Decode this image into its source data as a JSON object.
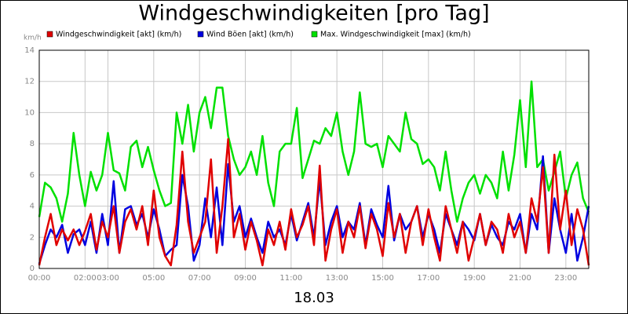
{
  "chart_data": {
    "type": "line",
    "title": "Windgeschwindigkeiten [pro Tag]",
    "y_label": "km/h",
    "x_label": "18.03",
    "xlim": [
      0,
      24
    ],
    "ylim": [
      0,
      14
    ],
    "yticks": [
      0,
      2,
      4,
      6,
      8,
      10,
      12,
      14
    ],
    "xticks": [
      {
        "value": 0,
        "label": "00:00"
      },
      {
        "value": 2,
        "label": "02:00"
      },
      {
        "value": 3,
        "label": "03:00"
      },
      {
        "value": 5,
        "label": "05:00"
      },
      {
        "value": 7,
        "label": "07:00"
      },
      {
        "value": 9,
        "label": "09:00"
      },
      {
        "value": 11,
        "label": "11:00"
      },
      {
        "value": 13,
        "label": "13:00"
      },
      {
        "value": 15,
        "label": "15:00"
      },
      {
        "value": 17,
        "label": "17:00"
      },
      {
        "value": 19,
        "label": "19:00"
      },
      {
        "value": 21,
        "label": "21:00"
      },
      {
        "value": 23,
        "label": "23:00"
      }
    ],
    "grid": true,
    "x": [
      0,
      0.25,
      0.5,
      0.75,
      1,
      1.25,
      1.5,
      1.75,
      2,
      2.25,
      2.5,
      2.75,
      3,
      3.25,
      3.5,
      3.75,
      4,
      4.25,
      4.5,
      4.75,
      5,
      5.25,
      5.5,
      5.75,
      6,
      6.25,
      6.5,
      6.75,
      7,
      7.25,
      7.5,
      7.75,
      8,
      8.25,
      8.5,
      8.75,
      9,
      9.25,
      9.5,
      9.75,
      10,
      10.25,
      10.5,
      10.75,
      11,
      11.25,
      11.5,
      11.75,
      12,
      12.25,
      12.5,
      12.75,
      13,
      13.25,
      13.5,
      13.75,
      14,
      14.25,
      14.5,
      14.75,
      15,
      15.25,
      15.5,
      15.75,
      16,
      16.25,
      16.5,
      16.75,
      17,
      17.25,
      17.5,
      17.75,
      18,
      18.25,
      18.5,
      18.75,
      19,
      19.25,
      19.5,
      19.75,
      20,
      20.25,
      20.5,
      20.75,
      21,
      21.25,
      21.5,
      21.75,
      22,
      22.25,
      22.5,
      22.75,
      23,
      23.25,
      23.5,
      23.75,
      24
    ],
    "series": [
      {
        "name": "Max. Windgeschwindigkeit [max] (km/h)",
        "color": "#00e000",
        "values": [
          3.3,
          5.5,
          5.2,
          4.5,
          3.0,
          4.8,
          8.7,
          6.0,
          4.0,
          6.2,
          5.0,
          6.0,
          8.7,
          6.3,
          6.1,
          5.0,
          7.8,
          8.2,
          6.5,
          7.8,
          6.3,
          5.0,
          4.0,
          4.2,
          10.0,
          8.0,
          10.5,
          7.5,
          10.0,
          11.0,
          9.0,
          11.6,
          11.6,
          8.5,
          7.0,
          6.0,
          6.5,
          7.5,
          6.0,
          8.5,
          5.5,
          4.0,
          7.5,
          8.0,
          8.0,
          10.3,
          5.8,
          7.0,
          8.2,
          8.0,
          9.0,
          8.5,
          10.0,
          7.5,
          6.0,
          7.5,
          11.3,
          8.0,
          7.8,
          8.0,
          6.5,
          8.5,
          8.0,
          7.5,
          10.0,
          8.3,
          8.0,
          6.7,
          7.0,
          6.5,
          5.0,
          7.5,
          5.0,
          3.0,
          4.5,
          5.5,
          6.0,
          4.8,
          6.0,
          5.5,
          4.5,
          7.5,
          5.0,
          7.3,
          10.8,
          6.5,
          12.0,
          6.5,
          7.0,
          5.0,
          6.2,
          7.5,
          4.5,
          6.0,
          6.8,
          4.5,
          3.6
        ]
      },
      {
        "name": "Wind Böen [akt] (km/h)",
        "color": "#0000e0",
        "values": [
          0.3,
          1.5,
          2.5,
          2.0,
          2.8,
          1.0,
          2.2,
          2.5,
          1.5,
          3.0,
          1.0,
          3.5,
          1.5,
          5.6,
          1.0,
          3.8,
          4.0,
          2.8,
          3.5,
          2.0,
          3.8,
          2.5,
          0.8,
          1.2,
          1.5,
          6.0,
          4.0,
          0.5,
          1.5,
          4.5,
          2.0,
          5.2,
          1.5,
          6.7,
          3.0,
          4.0,
          2.0,
          3.2,
          2.0,
          1.0,
          3.0,
          2.0,
          2.5,
          1.5,
          3.5,
          1.8,
          3.0,
          4.2,
          2.0,
          5.7,
          1.5,
          3.0,
          4.0,
          2.0,
          3.0,
          2.5,
          4.2,
          1.5,
          3.8,
          2.8,
          2.0,
          5.3,
          1.8,
          3.5,
          2.5,
          3.0,
          4.0,
          2.0,
          3.5,
          2.5,
          1.0,
          3.5,
          2.5,
          1.5,
          3.0,
          2.5,
          1.8,
          3.5,
          1.5,
          2.8,
          2.0,
          1.5,
          3.0,
          2.5,
          3.5,
          1.0,
          3.5,
          2.5,
          7.2,
          1.0,
          4.5,
          2.5,
          1.0,
          3.5,
          0.5,
          2.0,
          4.0
        ]
      },
      {
        "name": "Windgeschwindigkeit [akt] (km/h)",
        "color": "#e00000",
        "values": [
          0.2,
          2.0,
          3.5,
          1.5,
          2.5,
          1.8,
          2.5,
          1.5,
          2.4,
          3.5,
          1.2,
          3.0,
          2.0,
          4.0,
          1.0,
          3.0,
          3.8,
          2.5,
          4.0,
          1.5,
          5.0,
          2.0,
          0.8,
          0.2,
          2.8,
          7.5,
          3.0,
          1.0,
          2.0,
          3.0,
          7.0,
          1.0,
          4.0,
          8.3,
          2.0,
          3.5,
          1.2,
          3.0,
          1.8,
          0.2,
          2.5,
          1.5,
          3.0,
          1.2,
          3.8,
          2.0,
          2.8,
          4.0,
          1.5,
          6.6,
          0.5,
          2.5,
          3.8,
          1.0,
          3.0,
          2.0,
          4.0,
          1.3,
          3.5,
          2.5,
          0.8,
          4.2,
          2.0,
          3.5,
          1.0,
          3.0,
          4.0,
          1.5,
          3.8,
          2.0,
          0.5,
          4.0,
          2.5,
          1.0,
          3.0,
          0.5,
          2.0,
          3.5,
          1.5,
          3.0,
          2.5,
          1.0,
          3.5,
          2.0,
          3.0,
          1.0,
          4.5,
          3.0,
          6.5,
          1.0,
          7.3,
          2.5,
          5.0,
          1.5,
          3.8,
          2.5,
          0.2
        ]
      }
    ]
  }
}
